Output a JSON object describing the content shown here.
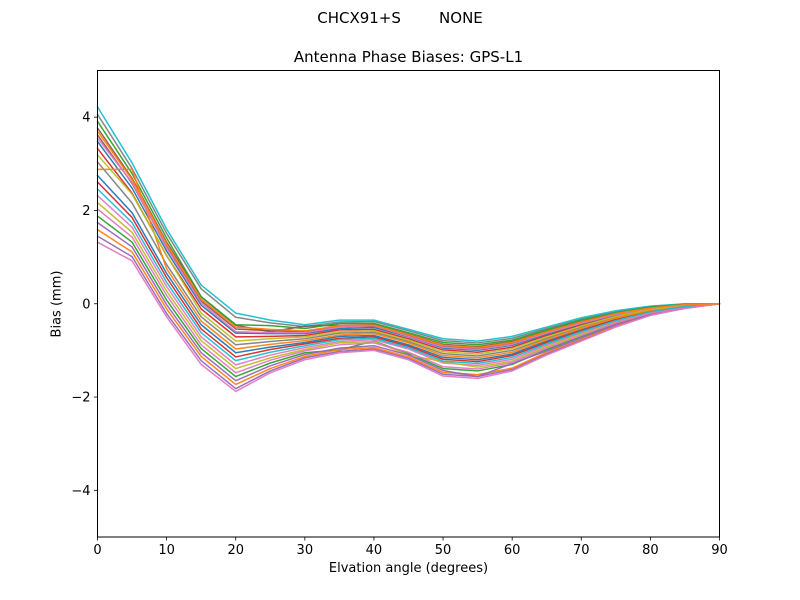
{
  "figure": {
    "suptitle": "CHCX91+S        NONE",
    "title": "Antenna Phase Biases: GPS-L1",
    "xlabel": "Elvation angle (degrees)",
    "ylabel": "Bias (mm)"
  },
  "chart_data": {
    "type": "line",
    "suptitle": "CHCX91+S        NONE",
    "title": "Antenna Phase Biases: GPS-L1",
    "xlabel": "Elvation angle (degrees)",
    "ylabel": "Bias (mm)",
    "xlim": [
      0,
      90
    ],
    "ylim": [
      -5,
      5
    ],
    "xticks": [
      0,
      10,
      20,
      30,
      40,
      50,
      60,
      70,
      80,
      90
    ],
    "yticks": [
      -4,
      -2,
      0,
      2,
      4
    ],
    "grid": false,
    "legend": "none",
    "line_width": 1.5,
    "x": [
      0,
      5,
      10,
      15,
      20,
      25,
      30,
      35,
      40,
      45,
      50,
      55,
      60,
      65,
      70,
      75,
      80,
      85,
      90
    ],
    "series": [
      {
        "color": "#1f77b4",
        "values": [
          2.75,
          1.95,
          0.65,
          -0.45,
          -1.05,
          -0.93,
          -0.83,
          -0.7,
          -0.68,
          -0.88,
          -1.15,
          -1.2,
          -1.08,
          -0.8,
          -0.55,
          -0.33,
          -0.15,
          -0.05,
          0.0
        ]
      },
      {
        "color": "#7f7f7f",
        "values": [
          4.06,
          2.9,
          1.51,
          0.32,
          -0.29,
          -0.41,
          -0.49,
          -0.39,
          -0.38,
          -0.58,
          -0.79,
          -0.84,
          -0.74,
          -0.53,
          -0.33,
          -0.17,
          -0.06,
          -0.01,
          0.0
        ]
      },
      {
        "color": "#2ca02c",
        "values": [
          1.88,
          1.32,
          0.08,
          -0.96,
          -1.56,
          -1.27,
          -1.05,
          -0.99,
          -0.8,
          -1.07,
          -1.39,
          -1.44,
          -1.3,
          -0.98,
          -0.7,
          -0.43,
          -0.21,
          -0.08,
          0.0
        ]
      },
      {
        "color": "#d62728",
        "values": [
          3.33,
          2.37,
          1.03,
          -0.11,
          -0.71,
          -0.7,
          -0.68,
          -0.56,
          -0.55,
          -0.75,
          -0.99,
          -1.04,
          -0.93,
          -0.68,
          -0.45,
          -0.26,
          -0.11,
          -0.03,
          0.0
        ]
      },
      {
        "color": "#9467bd",
        "values": [
          1.45,
          1.01,
          -0.21,
          -1.22,
          -1.82,
          -1.44,
          -1.16,
          -1.02,
          -0.97,
          -1.17,
          -1.51,
          -1.56,
          -1.41,
          -1.07,
          -0.78,
          -0.48,
          -0.24,
          -0.1,
          0.0
        ]
      },
      {
        "color": "#8c564b",
        "values": [
          3.77,
          2.69,
          1.32,
          0.15,
          -0.46,
          -0.6,
          -0.48,
          -0.46,
          -0.45,
          -0.65,
          -0.87,
          -0.92,
          -0.81,
          -0.59,
          -0.38,
          -0.2,
          -0.08,
          -0.02,
          0.0
        ]
      },
      {
        "color": "#e377c2",
        "values": [
          2.32,
          1.64,
          0.37,
          -0.71,
          -1.31,
          -1.1,
          -0.94,
          -0.81,
          -0.77,
          -0.97,
          -1.27,
          -1.32,
          -1.19,
          -0.89,
          -0.63,
          -0.38,
          -0.18,
          -0.07,
          0.0
        ]
      },
      {
        "color": "#7f7f7f",
        "values": [
          3.04,
          2.16,
          0.84,
          -0.28,
          -0.88,
          -0.81,
          -0.75,
          -0.63,
          -0.61,
          -0.81,
          -1.07,
          -1.12,
          -1.0,
          -0.74,
          -0.5,
          -0.29,
          -0.13,
          -0.04,
          0.0
        ]
      },
      {
        "color": "#17becf",
        "values": [
          4.22,
          3.02,
          1.6,
          0.4,
          -0.2,
          -0.35,
          -0.45,
          -0.35,
          -0.35,
          -0.55,
          -0.75,
          -0.8,
          -0.7,
          -0.5,
          -0.3,
          -0.15,
          -0.05,
          0.0,
          0.0
        ]
      },
      {
        "color": "#bcbd22",
        "values": [
          2.17,
          1.53,
          0.27,
          -0.79,
          -1.39,
          -1.16,
          -0.98,
          -0.84,
          -0.81,
          -1.1,
          -1.24,
          -1.36,
          -1.23,
          -0.92,
          -0.65,
          -0.4,
          -0.19,
          -0.07,
          0.0
        ]
      },
      {
        "color": "#1f77b4",
        "values": [
          3.48,
          2.48,
          1.13,
          -0.03,
          -0.63,
          -0.64,
          -0.64,
          -0.53,
          -0.51,
          -0.71,
          -0.95,
          -1.0,
          -0.89,
          -0.65,
          -0.43,
          -0.24,
          -0.1,
          -0.03,
          0.0
        ]
      },
      {
        "color": "#ff7f0e",
        "values": [
          1.59,
          1.11,
          -0.11,
          -1.13,
          -1.73,
          -1.39,
          -1.13,
          -0.98,
          -0.94,
          -1.14,
          -1.47,
          -1.52,
          -1.38,
          -1.04,
          -0.75,
          -0.47,
          -0.23,
          -0.09,
          0.0
        ]
      },
      {
        "color": "#2ca02c",
        "values": [
          3.91,
          2.79,
          1.41,
          0.15,
          -0.45,
          -0.47,
          -0.53,
          -0.42,
          -0.42,
          -0.62,
          -0.83,
          -0.88,
          -0.78,
          -0.56,
          -0.35,
          -0.19,
          -0.07,
          -0.01,
          0.0
        ]
      },
      {
        "color": "#d62728",
        "values": [
          2.61,
          1.85,
          0.56,
          -0.54,
          -1.14,
          -0.98,
          -0.86,
          -0.74,
          -0.71,
          -0.91,
          -1.19,
          -1.24,
          -1.11,
          -0.83,
          -0.58,
          -0.34,
          -0.16,
          -0.06,
          0.0
        ]
      },
      {
        "color": "#9467bd",
        "values": [
          1.74,
          1.22,
          -0.02,
          -1.05,
          -1.65,
          -1.33,
          -1.09,
          -0.95,
          -0.9,
          -1.1,
          -1.43,
          -1.56,
          -1.28,
          -1.01,
          -0.73,
          -0.45,
          -0.22,
          -0.09,
          0.0
        ]
      },
      {
        "color": "#8c564b",
        "values": [
          3.62,
          2.58,
          1.22,
          0.06,
          -0.54,
          -0.58,
          -0.6,
          -0.49,
          -0.48,
          -0.68,
          -0.91,
          -0.96,
          -0.85,
          -0.62,
          -0.4,
          -0.22,
          -0.09,
          -0.02,
          0.0
        ]
      },
      {
        "color": "#e377c2",
        "values": [
          2.03,
          1.43,
          0.18,
          -0.88,
          -1.48,
          -1.21,
          -1.01,
          -0.88,
          -0.84,
          -1.04,
          -1.35,
          -1.4,
          -1.26,
          -0.95,
          -0.68,
          -0.41,
          -0.2,
          -0.08,
          0.0
        ]
      },
      {
        "color": "#ff7f0e",
        "values": [
          2.88,
          2.88,
          0.75,
          -0.37,
          -0.97,
          -0.87,
          -0.79,
          -0.67,
          -0.64,
          -0.84,
          -1.11,
          -1.16,
          -1.04,
          -0.77,
          -0.53,
          -0.31,
          -0.14,
          -0.05,
          0.0
        ]
      },
      {
        "color": "#bcbd22",
        "values": [
          3.19,
          2.35,
          1.04,
          -0.2,
          -0.8,
          -0.75,
          -0.71,
          -0.6,
          -0.58,
          -0.78,
          -1.03,
          -1.08,
          -0.96,
          -0.71,
          -0.48,
          -0.27,
          -0.12,
          -0.04,
          0.0
        ]
      },
      {
        "color": "#17becf",
        "values": [
          2.46,
          1.74,
          0.46,
          -0.62,
          -1.22,
          -1.04,
          -0.9,
          -0.77,
          -0.74,
          -0.94,
          -1.23,
          -1.28,
          -1.15,
          -0.86,
          -0.6,
          -0.36,
          -0.17,
          -0.06,
          0.0
        ]
      },
      {
        "color": "#e377c2",
        "values": [
          1.32,
          0.92,
          -0.28,
          -1.3,
          -1.88,
          -1.48,
          -1.2,
          -1.05,
          -1.0,
          -1.2,
          -1.55,
          -1.6,
          -1.44,
          -1.1,
          -0.8,
          -0.5,
          -0.25,
          -0.1,
          0.0
        ]
      },
      {
        "color": "#e377c2",
        "values": [
          3.55,
          2.6,
          1.2,
          0.02,
          -0.6,
          -0.62,
          -0.62,
          -0.5,
          -0.47,
          -0.7,
          -0.93,
          -0.98,
          -0.87,
          -0.63,
          -0.42,
          -0.23,
          -0.1,
          -0.02,
          0.0
        ]
      },
      {
        "color": "#ff7f0e",
        "values": [
          3.7,
          2.66,
          1.28,
          0.1,
          -0.5,
          -0.55,
          -0.58,
          -0.47,
          -0.46,
          -0.66,
          -0.89,
          -0.94,
          -0.83,
          -0.6,
          -0.39,
          -0.21,
          -0.09,
          -0.02,
          0.0
        ]
      }
    ]
  }
}
